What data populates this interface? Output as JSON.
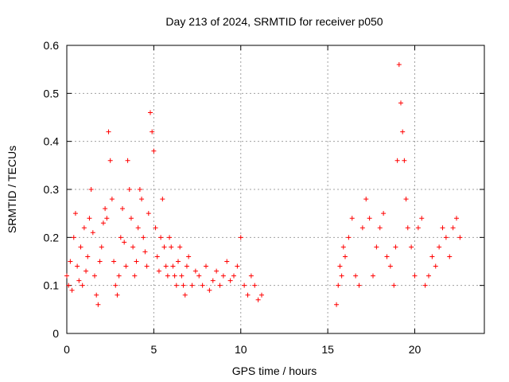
{
  "chart_data": {
    "type": "scatter",
    "title": "Day 213 of 2024, SRMTID for receiver p050",
    "xlabel": "GPS time / hours",
    "ylabel": "SRMTID / TECUs",
    "xlim": [
      0,
      24
    ],
    "ylim": [
      0,
      0.6
    ],
    "xticks": [
      0,
      5,
      10,
      15,
      20
    ],
    "yticks": [
      0,
      0.1,
      0.2,
      0.3,
      0.4,
      0.5,
      0.6
    ],
    "xtick_labels": [
      "0",
      "5",
      "10",
      "15",
      "20"
    ],
    "ytick_labels": [
      "0",
      "0.1",
      "0.2",
      "0.3",
      "0.4",
      "0.5",
      "0.6"
    ],
    "grid": true,
    "marker": "+",
    "color": "#ff0000",
    "series": [
      {
        "name": "SRMTID",
        "x": [
          0.0,
          0.1,
          0.2,
          0.3,
          0.4,
          0.5,
          0.6,
          0.7,
          0.8,
          0.9,
          1.0,
          1.1,
          1.2,
          1.3,
          1.4,
          1.5,
          1.6,
          1.7,
          1.8,
          1.9,
          2.0,
          2.1,
          2.2,
          2.3,
          2.4,
          2.5,
          2.6,
          2.7,
          2.8,
          2.9,
          3.0,
          3.1,
          3.2,
          3.3,
          3.4,
          3.5,
          3.6,
          3.7,
          3.8,
          3.9,
          4.0,
          4.1,
          4.2,
          4.3,
          4.4,
          4.5,
          4.6,
          4.7,
          4.8,
          4.9,
          5.0,
          5.1,
          5.2,
          5.3,
          5.4,
          5.5,
          5.6,
          5.7,
          5.8,
          5.9,
          6.0,
          6.1,
          6.2,
          6.3,
          6.4,
          6.5,
          6.6,
          6.7,
          6.8,
          6.9,
          7.0,
          7.2,
          7.4,
          7.6,
          7.8,
          8.0,
          8.2,
          8.4,
          8.6,
          8.8,
          9.0,
          9.2,
          9.4,
          9.6,
          9.8,
          10.0,
          10.2,
          10.4,
          10.6,
          10.8,
          11.0,
          11.2,
          15.5,
          15.6,
          15.7,
          15.8,
          15.9,
          16.0,
          16.2,
          16.4,
          16.6,
          16.8,
          17.0,
          17.2,
          17.4,
          17.6,
          17.8,
          18.0,
          18.2,
          18.4,
          18.6,
          18.8,
          18.9,
          19.0,
          19.1,
          19.2,
          19.3,
          19.4,
          19.5,
          19.6,
          19.8,
          20.0,
          20.2,
          20.4,
          20.6,
          20.8,
          21.0,
          21.2,
          21.4,
          21.6,
          21.8,
          22.0,
          22.2,
          22.4,
          22.6
        ],
        "y": [
          0.12,
          0.1,
          0.15,
          0.09,
          0.2,
          0.25,
          0.14,
          0.11,
          0.18,
          0.1,
          0.22,
          0.13,
          0.16,
          0.24,
          0.3,
          0.21,
          0.12,
          0.08,
          0.06,
          0.15,
          0.18,
          0.23,
          0.26,
          0.24,
          0.42,
          0.36,
          0.28,
          0.15,
          0.1,
          0.08,
          0.12,
          0.2,
          0.26,
          0.19,
          0.14,
          0.36,
          0.3,
          0.24,
          0.18,
          0.12,
          0.15,
          0.22,
          0.3,
          0.28,
          0.2,
          0.17,
          0.14,
          0.25,
          0.46,
          0.42,
          0.38,
          0.22,
          0.16,
          0.13,
          0.2,
          0.28,
          0.18,
          0.14,
          0.12,
          0.2,
          0.18,
          0.14,
          0.12,
          0.1,
          0.15,
          0.18,
          0.12,
          0.1,
          0.08,
          0.14,
          0.16,
          0.1,
          0.13,
          0.12,
          0.1,
          0.14,
          0.09,
          0.11,
          0.13,
          0.1,
          0.12,
          0.15,
          0.11,
          0.12,
          0.14,
          0.2,
          0.1,
          0.08,
          0.12,
          0.1,
          0.07,
          0.08,
          0.06,
          0.1,
          0.14,
          0.12,
          0.18,
          0.16,
          0.2,
          0.24,
          0.12,
          0.1,
          0.22,
          0.28,
          0.24,
          0.12,
          0.18,
          0.22,
          0.25,
          0.16,
          0.14,
          0.1,
          0.18,
          0.36,
          0.56,
          0.48,
          0.42,
          0.36,
          0.28,
          0.22,
          0.18,
          0.12,
          0.22,
          0.24,
          0.1,
          0.12,
          0.16,
          0.14,
          0.18,
          0.22,
          0.2,
          0.16,
          0.22,
          0.24,
          0.2
        ]
      }
    ]
  }
}
